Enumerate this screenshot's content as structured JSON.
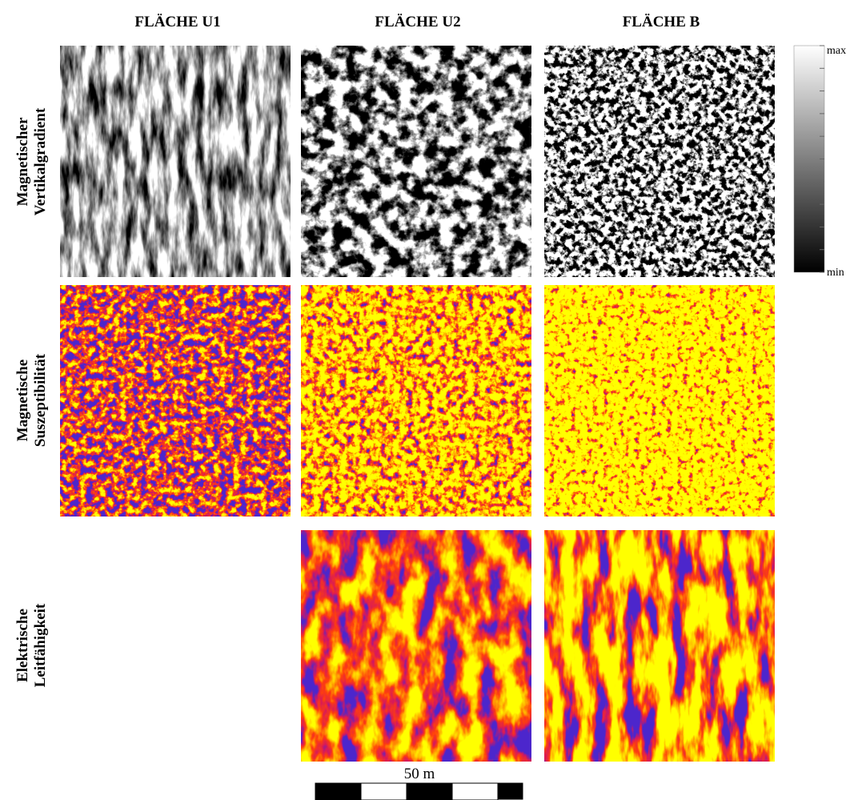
{
  "columns": [
    "FLÄCHE U1",
    "FLÄCHE U2",
    "FLÄCHE B"
  ],
  "rows": [
    [
      "Magnetischer",
      "Vertikalgradient"
    ],
    [
      "Magnetische",
      "Suszeptibilität"
    ],
    [
      "Elektrische",
      "Leitfähigkeit"
    ]
  ],
  "colorbar": {
    "max": "max",
    "min": "min"
  },
  "scale_bar": {
    "label": "50 m"
  }
}
